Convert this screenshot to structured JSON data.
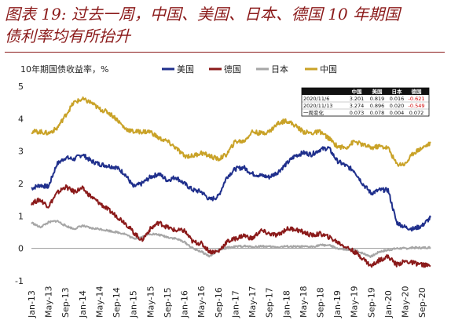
{
  "header": {
    "title_line1": "图表 19: 过去一周，中国、美国、日本、德国 10 年期国",
    "title_line2": "债利率均有所抬升"
  },
  "chart_data": {
    "type": "line",
    "title": "图表 19: 过去一周，中国、美国、日本、德国 10 年期国债利率均有所抬升",
    "ylabel": "10年期国债收益率，%",
    "xlabel": "",
    "ylim": [
      -1,
      5
    ],
    "yticks": [
      "-1",
      "0",
      "1",
      "2",
      "3",
      "4",
      "5"
    ],
    "xlim": [
      "2013-01",
      "2020-11"
    ],
    "x_tick_labels": [
      "Jan-13",
      "May-13",
      "Sep-13",
      "Jan-14",
      "May-14",
      "Sep-14",
      "Jan-15",
      "May-15",
      "Sep-15",
      "Jan-16",
      "May-16",
      "Sep-16",
      "Jan-17",
      "May-17",
      "Sep-17",
      "Jan-18",
      "May-18",
      "Sep-18",
      "Jan-19",
      "May-19",
      "Sep-19",
      "Jan-20",
      "May-20",
      "Sep-20"
    ],
    "legend_position": "top",
    "grid": false,
    "x": [
      "2013-01",
      "2013-03",
      "2013-05",
      "2013-07",
      "2013-09",
      "2013-11",
      "2014-01",
      "2014-03",
      "2014-05",
      "2014-07",
      "2014-09",
      "2014-11",
      "2015-01",
      "2015-03",
      "2015-05",
      "2015-07",
      "2015-09",
      "2015-11",
      "2016-01",
      "2016-03",
      "2016-05",
      "2016-07",
      "2016-09",
      "2016-11",
      "2017-01",
      "2017-03",
      "2017-05",
      "2017-07",
      "2017-09",
      "2017-11",
      "2018-01",
      "2018-03",
      "2018-05",
      "2018-07",
      "2018-09",
      "2018-11",
      "2019-01",
      "2019-03",
      "2019-05",
      "2019-07",
      "2019-09",
      "2019-11",
      "2020-01",
      "2020-03",
      "2020-05",
      "2020-07",
      "2020-09",
      "2020-11"
    ],
    "series": [
      {
        "name": "美国",
        "color": "#1F2F8C",
        "values": [
          1.85,
          1.95,
          1.9,
          2.6,
          2.8,
          2.75,
          2.9,
          2.7,
          2.6,
          2.55,
          2.5,
          2.3,
          1.9,
          2.0,
          2.2,
          2.3,
          2.1,
          2.2,
          2.0,
          1.8,
          1.75,
          1.5,
          1.6,
          2.2,
          2.45,
          2.5,
          2.3,
          2.25,
          2.2,
          2.35,
          2.6,
          2.85,
          2.95,
          2.9,
          3.05,
          3.1,
          2.7,
          2.55,
          2.4,
          2.0,
          1.7,
          1.8,
          1.8,
          0.8,
          0.65,
          0.6,
          0.7,
          0.95
        ]
      },
      {
        "name": "德国",
        "color": "#8B1A1A",
        "values": [
          1.4,
          1.5,
          1.3,
          1.7,
          1.9,
          1.75,
          1.85,
          1.6,
          1.4,
          1.2,
          1.0,
          0.8,
          0.5,
          0.25,
          0.6,
          0.8,
          0.65,
          0.55,
          0.55,
          0.2,
          0.15,
          -0.1,
          -0.1,
          0.2,
          0.3,
          0.4,
          0.3,
          0.55,
          0.45,
          0.4,
          0.6,
          0.6,
          0.5,
          0.4,
          0.45,
          0.35,
          0.2,
          0.05,
          -0.1,
          -0.3,
          -0.55,
          -0.35,
          -0.25,
          -0.5,
          -0.4,
          -0.45,
          -0.5,
          -0.55
        ]
      },
      {
        "name": "日本",
        "color": "#A6A6A6",
        "values": [
          0.8,
          0.65,
          0.8,
          0.85,
          0.7,
          0.6,
          0.7,
          0.62,
          0.6,
          0.55,
          0.5,
          0.45,
          0.3,
          0.35,
          0.45,
          0.42,
          0.35,
          0.3,
          0.2,
          0.0,
          -0.1,
          -0.25,
          -0.05,
          0.02,
          0.05,
          0.07,
          0.04,
          0.07,
          0.05,
          0.04,
          0.06,
          0.05,
          0.05,
          0.05,
          0.1,
          0.1,
          0.0,
          -0.05,
          -0.05,
          -0.15,
          -0.25,
          -0.1,
          -0.05,
          0.0,
          0.0,
          0.02,
          0.02,
          0.03
        ]
      },
      {
        "name": "中国",
        "color": "#C9A227",
        "values": [
          3.6,
          3.6,
          3.55,
          3.7,
          4.1,
          4.5,
          4.6,
          4.5,
          4.3,
          4.2,
          4.0,
          3.7,
          3.6,
          3.6,
          3.6,
          3.4,
          3.3,
          3.1,
          2.85,
          2.85,
          2.95,
          2.85,
          2.75,
          2.9,
          3.3,
          3.3,
          3.6,
          3.55,
          3.6,
          3.85,
          3.95,
          3.8,
          3.6,
          3.55,
          3.6,
          3.4,
          3.15,
          3.1,
          3.3,
          3.2,
          3.1,
          3.15,
          3.1,
          2.6,
          2.6,
          2.95,
          3.1,
          3.25
        ]
      }
    ]
  },
  "table": {
    "columns": [
      "",
      "中国",
      "美国",
      "日本",
      "德国"
    ],
    "rows": [
      {
        "date": "2020/11/6",
        "cn": "3.201",
        "us": "0.819",
        "jp": "0.016",
        "de": "-0.621",
        "de_color": "#d00000"
      },
      {
        "date": "2020/11/13",
        "cn": "3.274",
        "us": "0.896",
        "jp": "0.020",
        "de": "-0.549",
        "de_color": "#d00000"
      },
      {
        "date": "一周变化",
        "cn": "0.073",
        "us": "0.078",
        "jp": "0.004",
        "de": "0.072",
        "de_color": "#111111"
      }
    ]
  }
}
